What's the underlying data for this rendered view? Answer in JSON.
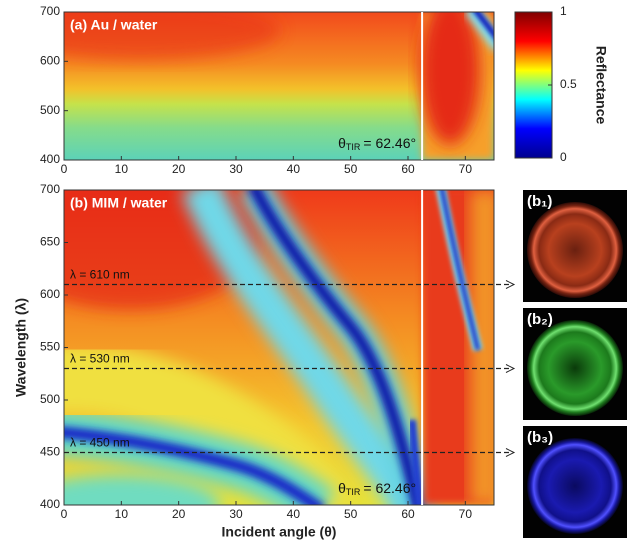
{
  "chart_data": [
    {
      "type": "heatmap",
      "title": "(a) Au / water",
      "xlim": [
        0,
        75
      ],
      "xticks": [
        0,
        10,
        20,
        30,
        40,
        50,
        60,
        70
      ],
      "ylim": [
        400,
        700
      ],
      "yticks": [
        400,
        500,
        600,
        700
      ],
      "annotations": [
        {
          "symbol": "θ",
          "subscript": "TIR",
          "text": "= 62.46°",
          "x": 62.46
        }
      ]
    },
    {
      "type": "heatmap",
      "title": "(b) MIM / water",
      "xlabel": "Incident angle (θ)",
      "ylabel": "Wavelength (λ)",
      "xlim": [
        0,
        75
      ],
      "xticks": [
        0,
        10,
        20,
        30,
        40,
        50,
        60,
        70
      ],
      "ylim": [
        400,
        700
      ],
      "yticks": [
        400,
        450,
        500,
        550,
        600,
        650,
        700
      ],
      "annotations": [
        {
          "symbol": "θ",
          "subscript": "TIR",
          "text": "= 62.46°",
          "x": 62.46
        }
      ],
      "wavelength_lines": [
        {
          "label": "λ = 610 nm",
          "y": 610
        },
        {
          "label": "λ = 530 nm",
          "y": 530
        },
        {
          "label": "λ = 450 nm",
          "y": 450
        }
      ],
      "insets": [
        "(b₁)",
        "(b₂)",
        "(b₃)"
      ]
    },
    {
      "type": "colorbar",
      "label": "Reflectance",
      "ylim": [
        0,
        1
      ],
      "yticks": [
        0,
        0.5,
        1
      ],
      "colors": [
        "#00008f",
        "#0000ff",
        "#00ffff",
        "#ffff00",
        "#ff0000",
        "#800000"
      ]
    }
  ]
}
